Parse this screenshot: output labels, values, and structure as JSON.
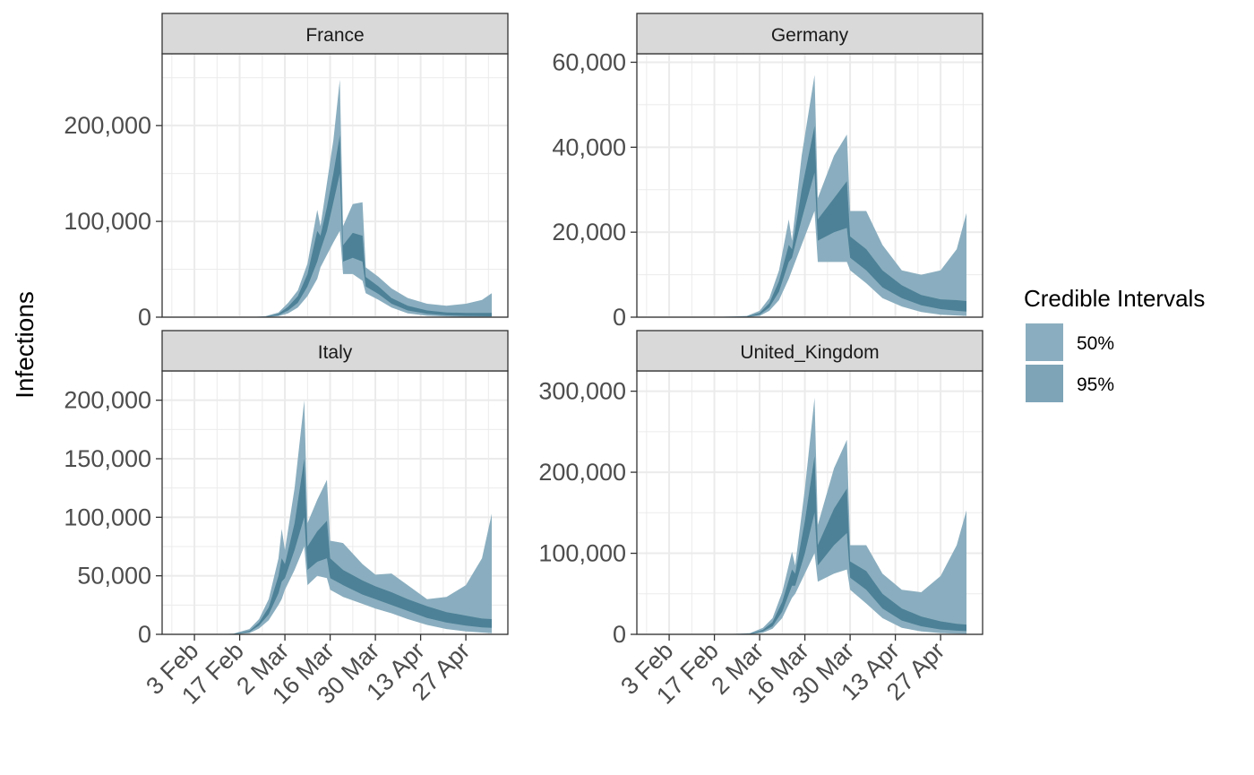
{
  "chart_data": {
    "type": "area",
    "ylabel": "Infections",
    "date_ticks": [
      "3 Feb",
      "17 Feb",
      "2 Mar",
      "16 Mar",
      "30 Mar",
      "13 Apr",
      "27 Apr"
    ],
    "legend": {
      "title": "Credible Intervals",
      "placement": "right",
      "entries": [
        {
          "label": "50%",
          "color": "#8aaebf"
        },
        {
          "label": "95%",
          "color": "#7ea4b8"
        }
      ]
    },
    "colors": {
      "outer_band": "#8aaebf",
      "inner_band": "#4d8197",
      "panel_grid": "#ebebeb",
      "strip_fill": "#d9d9d9"
    },
    "grid": true,
    "panels": [
      {
        "name": "France",
        "ylim": [
          0,
          275000
        ],
        "yticks": [
          0,
          100000,
          200000
        ],
        "ytick_labels": [
          "0",
          "100,000",
          "200,000"
        ],
        "series": [
          {
            "date": "2020-02-01",
            "lo95": 0,
            "lo50": 0,
            "hi50": 0,
            "hi95": 0
          },
          {
            "date": "2020-02-10",
            "lo95": 0,
            "lo50": 0,
            "hi50": 0,
            "hi95": 0
          },
          {
            "date": "2020-02-20",
            "lo95": 0,
            "lo50": 0,
            "hi50": 0,
            "hi95": 0
          },
          {
            "date": "2020-02-25",
            "lo95": 0,
            "lo50": 200,
            "hi50": 500,
            "hi95": 1000
          },
          {
            "date": "2020-02-29",
            "lo95": 1000,
            "lo50": 2000,
            "hi50": 3500,
            "hi95": 5000
          },
          {
            "date": "2020-03-03",
            "lo95": 4000,
            "lo50": 7000,
            "hi50": 11000,
            "hi95": 15000
          },
          {
            "date": "2020-03-06",
            "lo95": 10000,
            "lo50": 15000,
            "hi50": 22000,
            "hi95": 28000
          },
          {
            "date": "2020-03-09",
            "lo95": 22000,
            "lo50": 32000,
            "hi50": 45000,
            "hi95": 56000
          },
          {
            "date": "2020-03-12",
            "lo95": 40000,
            "lo50": 58000,
            "hi50": 90000,
            "hi95": 112000
          },
          {
            "date": "2020-03-13",
            "lo95": 52000,
            "lo50": 70000,
            "hi50": 85000,
            "hi95": 95000
          },
          {
            "date": "2020-03-15",
            "lo95": 65000,
            "lo50": 90000,
            "hi50": 115000,
            "hi95": 140000
          },
          {
            "date": "2020-03-17",
            "lo95": 78000,
            "lo50": 120000,
            "hi50": 150000,
            "hi95": 185000
          },
          {
            "date": "2020-03-19",
            "lo95": 90000,
            "lo50": 150000,
            "hi50": 190000,
            "hi95": 248000
          },
          {
            "date": "2020-03-20",
            "lo95": 45000,
            "lo50": 58000,
            "hi50": 75000,
            "hi95": 95000
          },
          {
            "date": "2020-03-23",
            "lo95": 45000,
            "lo50": 62000,
            "hi50": 88000,
            "hi95": 118000
          },
          {
            "date": "2020-03-26",
            "lo95": 38000,
            "lo50": 58000,
            "hi50": 85000,
            "hi95": 120000
          },
          {
            "date": "2020-03-27",
            "lo95": 25000,
            "lo50": 32000,
            "hi50": 42000,
            "hi95": 52000
          },
          {
            "date": "2020-03-31",
            "lo95": 18000,
            "lo50": 24000,
            "hi50": 32000,
            "hi95": 42000
          },
          {
            "date": "2020-04-04",
            "lo95": 10000,
            "lo50": 14000,
            "hi50": 20000,
            "hi95": 30000
          },
          {
            "date": "2020-04-09",
            "lo95": 4000,
            "lo50": 7000,
            "hi50": 12000,
            "hi95": 20000
          },
          {
            "date": "2020-04-15",
            "lo95": 1500,
            "lo50": 3500,
            "hi50": 7000,
            "hi95": 14000
          },
          {
            "date": "2020-04-21",
            "lo95": 700,
            "lo50": 2000,
            "hi50": 5000,
            "hi95": 12000
          },
          {
            "date": "2020-04-27",
            "lo95": 400,
            "lo50": 1300,
            "hi50": 4500,
            "hi95": 14000
          },
          {
            "date": "2020-05-02",
            "lo95": 300,
            "lo50": 1000,
            "hi50": 4500,
            "hi95": 18000
          },
          {
            "date": "2020-05-05",
            "lo95": 200,
            "lo50": 900,
            "hi50": 4500,
            "hi95": 25000
          }
        ]
      },
      {
        "name": "Germany",
        "ylim": [
          0,
          62000
        ],
        "yticks": [
          0,
          20000,
          40000,
          60000
        ],
        "ytick_labels": [
          "0",
          "20,000",
          "40,000",
          "60,000"
        ],
        "series": [
          {
            "date": "2020-02-01",
            "lo95": 0,
            "lo50": 0,
            "hi50": 0,
            "hi95": 0
          },
          {
            "date": "2020-02-15",
            "lo95": 0,
            "lo50": 0,
            "hi50": 0,
            "hi95": 0
          },
          {
            "date": "2020-02-27",
            "lo95": 0,
            "lo50": 50,
            "hi50": 150,
            "hi95": 300
          },
          {
            "date": "2020-03-02",
            "lo95": 300,
            "lo50": 600,
            "hi50": 1000,
            "hi95": 1500
          },
          {
            "date": "2020-03-05",
            "lo95": 1500,
            "lo50": 2300,
            "hi50": 3300,
            "hi95": 4500
          },
          {
            "date": "2020-03-08",
            "lo95": 4000,
            "lo50": 6000,
            "hi50": 8500,
            "hi95": 11000
          },
          {
            "date": "2020-03-11",
            "lo95": 9000,
            "lo50": 13000,
            "hi50": 17000,
            "hi95": 23000
          },
          {
            "date": "2020-03-12",
            "lo95": 11000,
            "lo50": 14000,
            "hi50": 16000,
            "hi95": 18000
          },
          {
            "date": "2020-03-15",
            "lo95": 17000,
            "lo50": 23000,
            "hi50": 30000,
            "hi95": 38000
          },
          {
            "date": "2020-03-19",
            "lo95": 25000,
            "lo50": 34000,
            "hi50": 45000,
            "hi95": 57000
          },
          {
            "date": "2020-03-20",
            "lo95": 13000,
            "lo50": 18000,
            "hi50": 23000,
            "hi95": 28000
          },
          {
            "date": "2020-03-25",
            "lo95": 13000,
            "lo50": 20000,
            "hi50": 28000,
            "hi95": 38000
          },
          {
            "date": "2020-03-29",
            "lo95": 13000,
            "lo50": 21000,
            "hi50": 32000,
            "hi95": 43000
          },
          {
            "date": "2020-03-30",
            "lo95": 11000,
            "lo50": 14000,
            "hi50": 19000,
            "hi95": 25000
          },
          {
            "date": "2020-04-04",
            "lo95": 8000,
            "lo50": 11000,
            "hi50": 16000,
            "hi95": 25000
          },
          {
            "date": "2020-04-09",
            "lo95": 4500,
            "lo50": 7000,
            "hi50": 11000,
            "hi95": 17000
          },
          {
            "date": "2020-04-15",
            "lo95": 2500,
            "lo50": 4500,
            "hi50": 7500,
            "hi95": 11000
          },
          {
            "date": "2020-04-21",
            "lo95": 1200,
            "lo50": 2800,
            "hi50": 5200,
            "hi95": 10000
          },
          {
            "date": "2020-04-27",
            "lo95": 600,
            "lo50": 1900,
            "hi50": 4200,
            "hi95": 11000
          },
          {
            "date": "2020-05-02",
            "lo95": 400,
            "lo50": 1500,
            "hi50": 4000,
            "hi95": 16000
          },
          {
            "date": "2020-05-05",
            "lo95": 300,
            "lo50": 1300,
            "hi50": 3800,
            "hi95": 24500
          }
        ]
      },
      {
        "name": "Italy",
        "ylim": [
          0,
          225000
        ],
        "yticks": [
          0,
          50000,
          100000,
          150000,
          200000
        ],
        "ytick_labels": [
          "0",
          "50,000",
          "100,000",
          "150,000",
          "200,000"
        ],
        "series": [
          {
            "date": "2020-02-01",
            "lo95": 0,
            "lo50": 0,
            "hi50": 0,
            "hi95": 0
          },
          {
            "date": "2020-02-10",
            "lo95": 0,
            "lo50": 0,
            "hi50": 0,
            "hi95": 0
          },
          {
            "date": "2020-02-15",
            "lo95": 0,
            "lo50": 100,
            "hi50": 300,
            "hi95": 600
          },
          {
            "date": "2020-02-20",
            "lo95": 1000,
            "lo50": 2000,
            "hi50": 3000,
            "hi95": 4500
          },
          {
            "date": "2020-02-23",
            "lo95": 5000,
            "lo50": 7500,
            "hi50": 10000,
            "hi95": 13000
          },
          {
            "date": "2020-02-26",
            "lo95": 12000,
            "lo50": 17000,
            "hi50": 23000,
            "hi95": 30000
          },
          {
            "date": "2020-02-29",
            "lo95": 25000,
            "lo50": 35000,
            "hi50": 50000,
            "hi95": 65000
          },
          {
            "date": "2020-03-01",
            "lo95": 30000,
            "lo50": 45000,
            "hi50": 65000,
            "hi95": 90000
          },
          {
            "date": "2020-03-02",
            "lo95": 38000,
            "lo50": 48000,
            "hi50": 60000,
            "hi95": 72000
          },
          {
            "date": "2020-03-05",
            "lo95": 55000,
            "lo50": 72000,
            "hi50": 95000,
            "hi95": 125000
          },
          {
            "date": "2020-03-08",
            "lo95": 75000,
            "lo50": 100000,
            "hi50": 150000,
            "hi95": 200000
          },
          {
            "date": "2020-03-09",
            "lo95": 42000,
            "lo50": 55000,
            "hi50": 75000,
            "hi95": 95000
          },
          {
            "date": "2020-03-12",
            "lo95": 50000,
            "lo50": 62000,
            "hi50": 88000,
            "hi95": 115000
          },
          {
            "date": "2020-03-15",
            "lo95": 48000,
            "lo50": 65000,
            "hi50": 97000,
            "hi95": 132000
          },
          {
            "date": "2020-03-16",
            "lo95": 38000,
            "lo50": 48000,
            "hi50": 65000,
            "hi95": 80000
          },
          {
            "date": "2020-03-20",
            "lo95": 32000,
            "lo50": 42000,
            "hi50": 55000,
            "hi95": 78000
          },
          {
            "date": "2020-03-26",
            "lo95": 26000,
            "lo50": 34000,
            "hi50": 46000,
            "hi95": 60000
          },
          {
            "date": "2020-03-30",
            "lo95": 22000,
            "lo50": 30000,
            "hi50": 41000,
            "hi95": 51000
          },
          {
            "date": "2020-04-04",
            "lo95": 18000,
            "lo50": 25000,
            "hi50": 36000,
            "hi95": 52000
          },
          {
            "date": "2020-04-09",
            "lo95": 13000,
            "lo50": 20000,
            "hi50": 30000,
            "hi95": 42000
          },
          {
            "date": "2020-04-15",
            "lo95": 8000,
            "lo50": 14000,
            "hi50": 24000,
            "hi95": 30000
          },
          {
            "date": "2020-04-21",
            "lo95": 4500,
            "lo50": 10000,
            "hi50": 19000,
            "hi95": 32000
          },
          {
            "date": "2020-04-27",
            "lo95": 2500,
            "lo50": 7500,
            "hi50": 16000,
            "hi95": 42000
          },
          {
            "date": "2020-05-02",
            "lo95": 1500,
            "lo50": 6000,
            "hi50": 13500,
            "hi95": 65000
          },
          {
            "date": "2020-05-05",
            "lo95": 1000,
            "lo50": 5500,
            "hi50": 13000,
            "hi95": 103000
          }
        ]
      },
      {
        "name": "United_Kingdom",
        "ylim": [
          0,
          325000
        ],
        "yticks": [
          0,
          100000,
          200000,
          300000
        ],
        "ytick_labels": [
          "0",
          "100,000",
          "200,000",
          "300,000"
        ],
        "series": [
          {
            "date": "2020-02-01",
            "lo95": 0,
            "lo50": 0,
            "hi50": 0,
            "hi95": 0
          },
          {
            "date": "2020-02-20",
            "lo95": 0,
            "lo50": 0,
            "hi50": 0,
            "hi95": 0
          },
          {
            "date": "2020-02-28",
            "lo95": 0,
            "lo50": 300,
            "hi50": 800,
            "hi95": 1500
          },
          {
            "date": "2020-03-03",
            "lo95": 2000,
            "lo50": 3500,
            "hi50": 5500,
            "hi95": 8000
          },
          {
            "date": "2020-03-06",
            "lo95": 7000,
            "lo50": 10000,
            "hi50": 15000,
            "hi95": 20000
          },
          {
            "date": "2020-03-09",
            "lo95": 20000,
            "lo50": 28000,
            "hi50": 40000,
            "hi95": 52000
          },
          {
            "date": "2020-03-12",
            "lo95": 45000,
            "lo50": 60000,
            "hi50": 80000,
            "hi95": 102000
          },
          {
            "date": "2020-03-13",
            "lo95": 50000,
            "lo50": 60000,
            "hi50": 75000,
            "hi95": 85000
          },
          {
            "date": "2020-03-16",
            "lo95": 75000,
            "lo50": 100000,
            "hi50": 140000,
            "hi95": 180000
          },
          {
            "date": "2020-03-19",
            "lo95": 100000,
            "lo50": 150000,
            "hi50": 220000,
            "hi95": 292000
          },
          {
            "date": "2020-03-20",
            "lo95": 65000,
            "lo50": 85000,
            "hi50": 110000,
            "hi95": 135000
          },
          {
            "date": "2020-03-25",
            "lo95": 75000,
            "lo50": 110000,
            "hi50": 155000,
            "hi95": 205000
          },
          {
            "date": "2020-03-29",
            "lo95": 80000,
            "lo50": 125000,
            "hi50": 180000,
            "hi95": 240000
          },
          {
            "date": "2020-03-30",
            "lo95": 55000,
            "lo50": 70000,
            "hi50": 90000,
            "hi95": 110000
          },
          {
            "date": "2020-04-04",
            "lo95": 38000,
            "lo50": 55000,
            "hi50": 78000,
            "hi95": 110000
          },
          {
            "date": "2020-04-09",
            "lo95": 20000,
            "lo50": 32000,
            "hi50": 50000,
            "hi95": 75000
          },
          {
            "date": "2020-04-15",
            "lo95": 8000,
            "lo50": 17000,
            "hi50": 32000,
            "hi95": 55000
          },
          {
            "date": "2020-04-21",
            "lo95": 3500,
            "lo50": 10000,
            "hi50": 22000,
            "hi95": 52000
          },
          {
            "date": "2020-04-27",
            "lo95": 1500,
            "lo50": 6000,
            "hi50": 16000,
            "hi95": 72000
          },
          {
            "date": "2020-05-02",
            "lo95": 800,
            "lo50": 4500,
            "hi50": 13000,
            "hi95": 110000
          },
          {
            "date": "2020-05-05",
            "lo95": 500,
            "lo50": 4000,
            "hi50": 12000,
            "hi95": 153000
          }
        ]
      }
    ]
  }
}
